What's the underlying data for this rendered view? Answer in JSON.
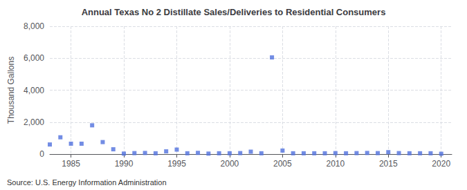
{
  "chart_data": {
    "type": "scatter",
    "title": "Annual Texas No 2 Distillate Sales/Deliveries to Residential Consumers",
    "ylabel": "Thousand Gallons",
    "annotations": [
      "Source: U.S. Energy Information Administration"
    ],
    "marker": "square",
    "x": [
      1983,
      1984,
      1985,
      1986,
      1987,
      1988,
      1989,
      1990,
      1991,
      1992,
      1993,
      1994,
      1995,
      1996,
      1997,
      1998,
      1999,
      2000,
      2001,
      2002,
      2003,
      2004,
      2005,
      2006,
      2007,
      2008,
      2009,
      2010,
      2011,
      2012,
      2013,
      2014,
      2015,
      2016,
      2017,
      2018,
      2019,
      2020
    ],
    "values": [
      600,
      1050,
      650,
      650,
      1800,
      750,
      300,
      30,
      60,
      70,
      50,
      170,
      280,
      50,
      75,
      30,
      50,
      50,
      60,
      150,
      50,
      6050,
      220,
      50,
      50,
      50,
      50,
      60,
      50,
      60,
      70,
      60,
      120,
      60,
      50,
      50,
      50,
      20
    ],
    "xlim": [
      1983,
      2021
    ],
    "xticks": [
      1985,
      1990,
      1995,
      2000,
      2005,
      2010,
      2015,
      2020
    ],
    "ylim": [
      0,
      8000
    ],
    "yticks": [
      0,
      {
        "value": 2000,
        "label": "2,000"
      },
      {
        "value": 4000,
        "label": "4,000"
      },
      {
        "value": 6000,
        "label": "6,000"
      },
      {
        "value": 8000,
        "label": "8,000"
      }
    ],
    "grid": true
  }
}
